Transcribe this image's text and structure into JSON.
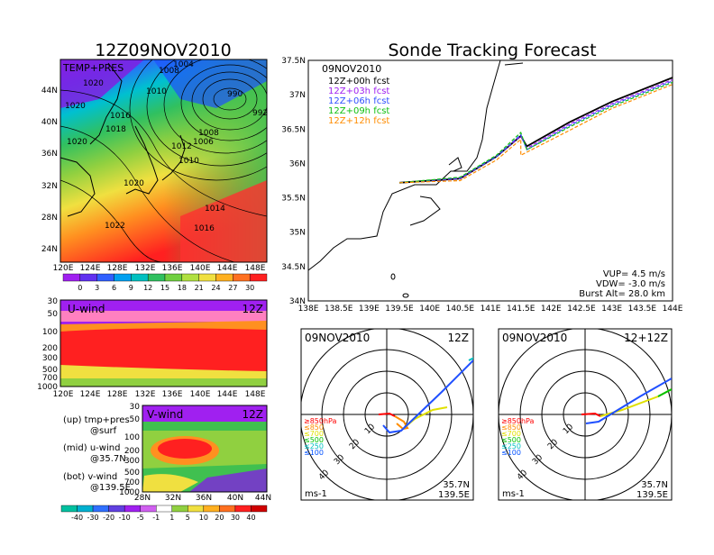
{
  "left_title": "12Z09NOV2010",
  "main_title": "Sonde Tracking Forecast",
  "temp_panel": {
    "label": "TEMP+PRES",
    "x_ticks": [
      "120E",
      "124E",
      "128E",
      "132E",
      "136E",
      "140E",
      "144E",
      "148E"
    ],
    "y_ticks": [
      "44N",
      "40N",
      "36N",
      "32N",
      "28N",
      "24N"
    ],
    "pressure_labels": [
      "1020",
      "1020",
      "1020",
      "1016",
      "1018",
      "1010",
      "1008",
      "1004",
      "990",
      "992",
      "1012",
      "1010",
      "1006",
      "1008",
      "1020",
      "1014",
      "1022",
      "1016"
    ],
    "colorbar_ticks": [
      "0",
      "3",
      "6",
      "9",
      "12",
      "15",
      "18",
      "21",
      "24",
      "27",
      "30"
    ]
  },
  "u_panel": {
    "label": "U-wind",
    "time": "12Z",
    "y_ticks": [
      "30",
      "50",
      "100",
      "200",
      "300",
      "500",
      "700",
      "1000"
    ],
    "x_ticks": [
      "120E",
      "124E",
      "128E",
      "132E",
      "136E",
      "140E",
      "144E",
      "148E"
    ]
  },
  "v_panel": {
    "label": "V-wind",
    "time": "12Z",
    "y_ticks": [
      "30",
      "50",
      "100",
      "200",
      "300",
      "500",
      "700",
      "1000"
    ],
    "x_ticks": [
      "28N",
      "32N",
      "36N",
      "40N",
      "44N"
    ]
  },
  "notes": {
    "up1": "(up) tmp+pres",
    "up2": "@surf",
    "mid1": "(mid) u-wind",
    "mid2": "@35.7N",
    "bot1": "(bot) v-wind",
    "bot2": "@139.5E"
  },
  "bottom_colorbar_ticks": [
    "-40",
    "-30",
    "-20",
    "-10",
    "-5",
    "-1",
    "1",
    "5",
    "10",
    "20",
    "30",
    "40"
  ],
  "track_map": {
    "date": "09NOV2010",
    "x_ticks": [
      "138E",
      "138.5E",
      "139E",
      "139.5E",
      "140E",
      "140.5E",
      "141E",
      "141.5E",
      "142E",
      "142.5E",
      "143E",
      "143.5E",
      "144E"
    ],
    "y_ticks": [
      "37.5N",
      "37N",
      "36.5N",
      "36N",
      "35.5N",
      "35N",
      "34.5N",
      "34N"
    ],
    "legend": [
      {
        "label": "12Z+00h  fcst",
        "color": "#000000"
      },
      {
        "label": "12Z+03h  fcst",
        "color": "#a020f0"
      },
      {
        "label": "12Z+06h  fcst",
        "color": "#3050ff"
      },
      {
        "label": "12Z+09h  fcst",
        "color": "#10c010"
      },
      {
        "label": "12Z+12h  fcst",
        "color": "#ff8c00"
      }
    ],
    "vup": "VUP= 4.5 m/s",
    "vdw": "VDW= -3.0 m/s",
    "burst": "Burst Alt= 28.0 km"
  },
  "hodo_left": {
    "date": "09NOV2010",
    "time": "12Z",
    "ring_labels": [
      "10",
      "20",
      "30",
      "40"
    ],
    "levels": [
      "≥850hPa",
      "≤850",
      "≤700",
      "≤500",
      "≤250",
      "≤100"
    ],
    "level_colors": [
      "#ff0000",
      "#ff8c00",
      "#e0e000",
      "#00c000",
      "#00c0c0",
      "#0050ff"
    ],
    "units": "ms-1",
    "lat": "35.7N",
    "lon": "139.5E"
  },
  "hodo_right": {
    "date": "09NOV2010",
    "time": "12+12Z",
    "ring_labels": [
      "10",
      "20",
      "30",
      "40"
    ],
    "levels": [
      "≥850hPa",
      "≤850",
      "≤700",
      "≤500",
      "≤250",
      "≤100"
    ],
    "level_colors": [
      "#ff0000",
      "#ff8c00",
      "#e0e000",
      "#00c000",
      "#00c0c0",
      "#0050ff"
    ],
    "units": "ms-1",
    "lat": "35.7N",
    "lon": "139.5E"
  },
  "chart_data": [
    {
      "type": "heatmap",
      "title": "12Z09NOV2010",
      "label": "TEMP+PRES",
      "x_range": [
        "120E",
        "148E"
      ],
      "y_range": [
        "24N",
        "44N"
      ],
      "colorbar": [
        0,
        3,
        6,
        9,
        12,
        15,
        18,
        21,
        24,
        27,
        30
      ]
    },
    {
      "type": "heatmap",
      "label": "U-wind",
      "time": "12Z",
      "y_levels_hPa": [
        30,
        50,
        100,
        200,
        300,
        500,
        700,
        1000
      ],
      "x_range": [
        "120E",
        "148E"
      ]
    },
    {
      "type": "heatmap",
      "label": "V-wind",
      "time": "12Z",
      "y_levels_hPa": [
        30,
        50,
        100,
        200,
        300,
        500,
        700,
        1000
      ],
      "x_range": [
        "28N",
        "44N"
      ],
      "colorbar": [
        -40,
        -30,
        -20,
        -10,
        -5,
        -1,
        1,
        5,
        10,
        20,
        30,
        40
      ]
    },
    {
      "type": "line",
      "title": "Sonde Tracking Forecast",
      "xlim": [
        138,
        144
      ],
      "ylim": [
        34,
        37.5
      ],
      "series": [
        {
          "name": "12Z+00h fcst",
          "x": [
            139.5,
            140.5,
            141.1,
            141.5,
            141.6,
            142.3,
            143,
            144
          ],
          "y": [
            35.72,
            35.78,
            36.1,
            36.4,
            36.25,
            36.6,
            36.9,
            37.25
          ]
        },
        {
          "name": "12Z+03h fcst",
          "x": [
            139.5,
            140.5,
            141.1,
            141.5,
            141.6,
            142.3,
            143,
            144
          ],
          "y": [
            35.72,
            35.78,
            36.1,
            36.4,
            36.22,
            36.57,
            36.87,
            37.22
          ]
        },
        {
          "name": "12Z+06h fcst",
          "x": [
            139.5,
            140.5,
            141.1,
            141.5,
            141.6,
            142.3,
            143,
            144
          ],
          "y": [
            35.72,
            35.79,
            36.1,
            36.42,
            36.2,
            36.55,
            36.85,
            37.2
          ]
        },
        {
          "name": "12Z+09h fcst",
          "x": [
            139.5,
            140.5,
            141.1,
            141.5,
            141.6,
            142.3,
            143,
            144
          ],
          "y": [
            35.72,
            35.8,
            36.12,
            36.45,
            36.2,
            36.53,
            36.83,
            37.18
          ]
        },
        {
          "name": "12Z+12h fcst",
          "x": [
            139.5,
            140.5,
            141.1,
            141.5,
            141.5,
            142.3,
            143,
            144
          ],
          "y": [
            35.72,
            35.75,
            36.05,
            36.35,
            36.12,
            36.48,
            36.8,
            37.15
          ]
        }
      ]
    }
  ]
}
